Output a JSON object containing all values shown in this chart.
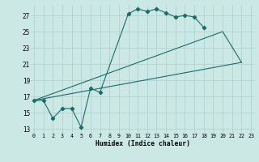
{
  "xlabel": "Humidex (Indice chaleur)",
  "bg_color": "#cce8e5",
  "grid_color": "#a8d0ce",
  "line_color": "#1a6b6a",
  "xlim_min": -0.3,
  "xlim_max": 23.3,
  "ylim_min": 12.5,
  "ylim_max": 28.3,
  "yticks": [
    13,
    15,
    17,
    19,
    21,
    23,
    25,
    27
  ],
  "xticks": [
    0,
    1,
    2,
    3,
    4,
    5,
    6,
    7,
    8,
    9,
    10,
    11,
    12,
    13,
    14,
    15,
    16,
    17,
    18,
    19,
    20,
    21,
    22,
    23
  ],
  "main_x": [
    0,
    1,
    2,
    3,
    4,
    5,
    6,
    7,
    10,
    11,
    12,
    13,
    14,
    15,
    16,
    17,
    18
  ],
  "main_y": [
    16.5,
    16.5,
    14.3,
    15.5,
    15.5,
    13.2,
    18.0,
    17.5,
    27.2,
    27.8,
    27.5,
    27.8,
    27.3,
    26.8,
    27.0,
    26.8,
    25.5
  ],
  "tri_line1_x": [
    0,
    20,
    22
  ],
  "tri_line1_y": [
    16.5,
    25.0,
    21.2
  ],
  "tri_line2_x": [
    0,
    22
  ],
  "tri_line2_y": [
    16.5,
    21.2
  ]
}
